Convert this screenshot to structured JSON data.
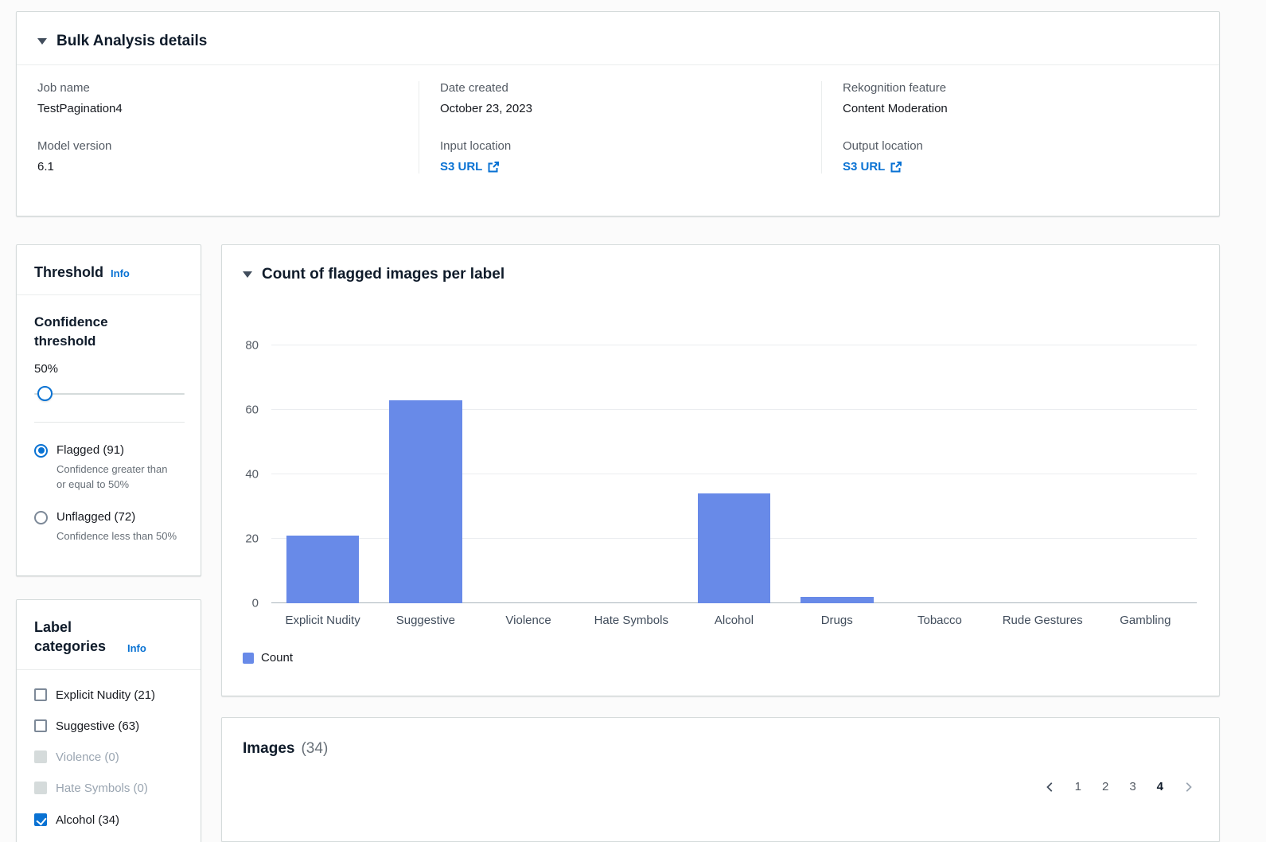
{
  "colors": {
    "link": "#0972d3",
    "accent": "#0972d3",
    "bar": "#688ae8"
  },
  "details": {
    "title": "Bulk Analysis details",
    "fields": {
      "job_name": {
        "label": "Job name",
        "value": "TestPagination4"
      },
      "model_version": {
        "label": "Model version",
        "value": "6.1"
      },
      "date_created": {
        "label": "Date created",
        "value": "October 23, 2023"
      },
      "input_location": {
        "label": "Input location",
        "link": "S3 URL"
      },
      "feature": {
        "label": "Rekognition feature",
        "value": "Content Moderation"
      },
      "output_location": {
        "label": "Output location",
        "link": "S3 URL"
      }
    }
  },
  "threshold": {
    "title": "Threshold",
    "info": "Info",
    "confidence_label": "Confidence threshold",
    "confidence_value": "50%",
    "options": [
      {
        "label": "Flagged (91)",
        "description": "Confidence greater than or equal to 50%",
        "selected": true
      },
      {
        "label": "Unflagged (72)",
        "description": "Confidence less than 50%",
        "selected": false
      }
    ]
  },
  "label_categories": {
    "title": "Label categories",
    "info": "Info",
    "items": [
      {
        "label": "Explicit Nudity (21)",
        "checked": false,
        "disabled": false
      },
      {
        "label": "Suggestive (63)",
        "checked": false,
        "disabled": false
      },
      {
        "label": "Violence (0)",
        "checked": false,
        "disabled": true
      },
      {
        "label": "Hate Symbols (0)",
        "checked": false,
        "disabled": true
      },
      {
        "label": "Alcohol (34)",
        "checked": true,
        "disabled": false
      }
    ]
  },
  "chart_panel": {
    "title": "Count of flagged images per label"
  },
  "chart_data": {
    "type": "bar",
    "title": "Count of flagged images per label",
    "categories": [
      "Explicit Nudity",
      "Suggestive",
      "Violence",
      "Hate Symbols",
      "Alcohol",
      "Drugs",
      "Tobacco",
      "Rude Gestures",
      "Gambling"
    ],
    "values": [
      21,
      63,
      0,
      0,
      34,
      2,
      0,
      0,
      0
    ],
    "series_name": "Count",
    "xlabel": "",
    "ylabel": "",
    "ylim": [
      0,
      80
    ],
    "yticks": [
      0,
      20,
      40,
      60,
      80
    ],
    "grid": true,
    "legend_position": "bottom-left",
    "bar_color": "#688ae8"
  },
  "images_panel": {
    "title": "Images",
    "count": "(34)",
    "pagination": {
      "pages": [
        "1",
        "2",
        "3",
        "4"
      ],
      "current": "4"
    }
  }
}
